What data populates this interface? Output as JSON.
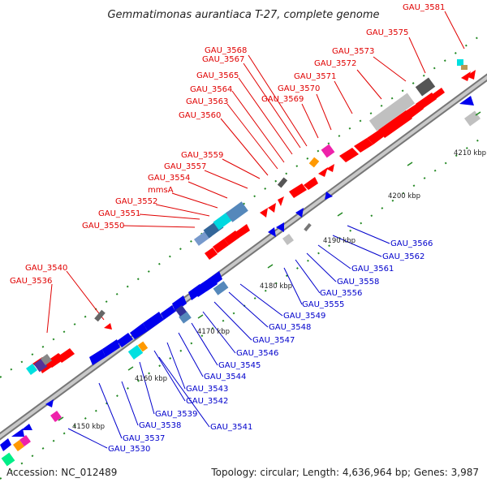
{
  "title": "Gemmatimonas aurantiaca T-27, complete genome",
  "footer": {
    "accession": "Accession: NC_012489",
    "summary": "Topology: circular; Length: 4,636,964 bp; Genes: 3,987"
  },
  "ticks": [
    {
      "label": "4150 kbp",
      "kbp": 4150
    },
    {
      "label": "4160 kbp",
      "kbp": 4160
    },
    {
      "label": "4170 kbp",
      "kbp": 4170
    },
    {
      "label": "4180 kbp",
      "kbp": 4180
    },
    {
      "label": "4190 kbp",
      "kbp": 4190
    },
    {
      "label": "4200 kbp",
      "kbp": 4200
    },
    {
      "label": "4210 kbp",
      "kbp": 4210
    }
  ],
  "forward_labels": [
    "GAU_3581",
    "GAU_3575",
    "GAU_3573",
    "GAU_3568",
    "GAU_3567",
    "GAU_3572",
    "GAU_3565",
    "GAU_3571",
    "GAU_3564",
    "GAU_3570",
    "GAU_3563",
    "GAU_3569",
    "GAU_3560",
    "GAU_3559",
    "GAU_3557",
    "GAU_3554",
    "mmsA",
    "GAU_3552",
    "GAU_3551",
    "GAU_3550",
    "GAU_3540",
    "GAU_3536"
  ],
  "reverse_labels": [
    "GAU_3566",
    "GAU_3562",
    "GAU_3561",
    "GAU_3558",
    "GAU_3556",
    "GAU_3555",
    "GAU_3549",
    "GAU_3548",
    "GAU_3547",
    "GAU_3546",
    "GAU_3545",
    "GAU_3544",
    "GAU_3543",
    "GAU_3542",
    "GAU_3539",
    "GAU_3541",
    "GAU_3538",
    "GAU_3537",
    "GAU_3530"
  ],
  "colors": {
    "forward_gene": "#ff0000",
    "reverse_gene": "#0000ee",
    "backbone": "#999999",
    "tick_mark": "#228822"
  }
}
